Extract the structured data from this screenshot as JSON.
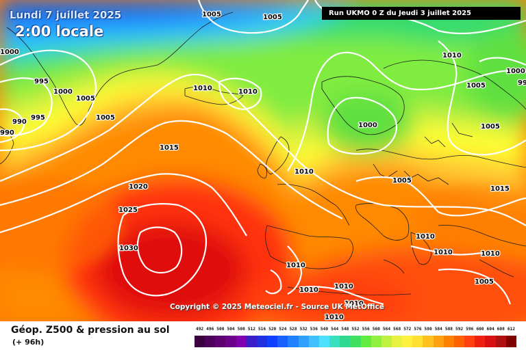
{
  "header": {
    "date": "Lundi 7 juillet 2025",
    "time": "2:00 locale",
    "run": "Run UKMO 0 Z du Jeudi 3 juillet 2025"
  },
  "map": {
    "copyright": "Copyright © 2025 Meteociel.fr - Source UK MetOffice",
    "isobar_labels": [
      {
        "text": "1005"
      },
      {
        "text": "1005"
      },
      {
        "text": "1000"
      },
      {
        "text": "995"
      },
      {
        "text": "1000"
      },
      {
        "text": "1005"
      },
      {
        "text": "1005"
      },
      {
        "text": "990"
      },
      {
        "text": "995"
      },
      {
        "text": "990"
      },
      {
        "text": "1010"
      },
      {
        "text": "1010"
      },
      {
        "text": "1015"
      },
      {
        "text": "1020"
      },
      {
        "text": "1025"
      },
      {
        "text": "1030"
      },
      {
        "text": "1010"
      },
      {
        "text": "1000"
      },
      {
        "text": "1010"
      },
      {
        "text": "1005"
      },
      {
        "text": "1000"
      },
      {
        "text": "1005"
      },
      {
        "text": "1005"
      },
      {
        "text": "99"
      },
      {
        "text": "1015"
      },
      {
        "text": "1010"
      },
      {
        "text": "1010"
      },
      {
        "text": "1010"
      },
      {
        "text": "1010"
      },
      {
        "text": "1005"
      },
      {
        "text": "1010"
      },
      {
        "text": "1010"
      },
      {
        "text": "1010"
      },
      {
        "text": "1010"
      }
    ]
  },
  "footer": {
    "title": "Géop. Z500 & pression au sol",
    "lead": "(+ 96h)"
  },
  "legend": {
    "labels": [
      "492",
      "496",
      "500",
      "504",
      "508",
      "512",
      "516",
      "520",
      "524",
      "528",
      "532",
      "536",
      "540",
      "544",
      "548",
      "552",
      "556",
      "560",
      "564",
      "568",
      "572",
      "576",
      "580",
      "584",
      "588",
      "592",
      "596",
      "600",
      "604",
      "608",
      "612"
    ],
    "colors": [
      "#3a0040",
      "#4d005a",
      "#5e0070",
      "#6c0088",
      "#8000b0",
      "#3a1ec8",
      "#2030e0",
      "#1040ff",
      "#1860ff",
      "#2080ff",
      "#30a0ff",
      "#40c0ff",
      "#50e0ff",
      "#38e0c0",
      "#30d890",
      "#40e060",
      "#60ec40",
      "#90f040",
      "#c0f040",
      "#e8f040",
      "#fff040",
      "#ffe030",
      "#ffc020",
      "#ffa010",
      "#ff8000",
      "#ff6000",
      "#ff4010",
      "#f02010",
      "#d81010",
      "#b01010",
      "#800000"
    ]
  }
}
